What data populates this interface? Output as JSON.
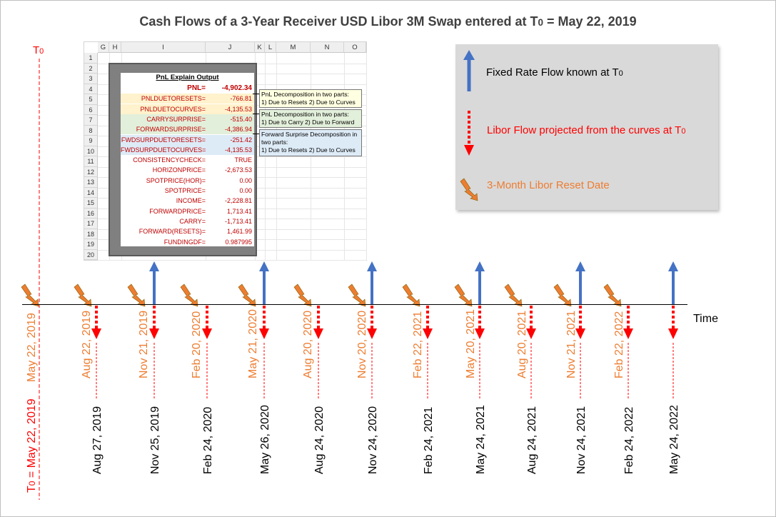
{
  "title": {
    "main": "Cash Flows of a 3-Year Receiver USD Libor 3M Swap entered at T",
    "sub": "0",
    "date": " = May 22, 2019"
  },
  "t0_marker": {
    "base": "T",
    "sub": "0"
  },
  "spreadsheet": {
    "columns": [
      "G",
      "H",
      "I",
      "J",
      "K",
      "L",
      "M",
      "N",
      "O"
    ],
    "rows": [
      "1",
      "2",
      "3",
      "4",
      "5",
      "6",
      "7",
      "8",
      "9",
      "10",
      "11",
      "12",
      "13",
      "14",
      "15",
      "16",
      "17",
      "18",
      "19",
      "20"
    ],
    "header": "PnL Explain Output",
    "entries": [
      {
        "label": "PNL=",
        "value": "-4,902.34"
      },
      {
        "label": "PNLDUETORESETS=",
        "value": "-766.81"
      },
      {
        "label": "PNLDUETOCURVES=",
        "value": "-4,135.53"
      },
      {
        "label": "CARRYSURPRISE=",
        "value": "-515.40"
      },
      {
        "label": "FORWARDSURPRISE=",
        "value": "-4,386.94"
      },
      {
        "label": "FWDSURPDUETORESETS=",
        "value": "-251.42"
      },
      {
        "label": "FWDSURPDUETOCURVES=",
        "value": "-4,135.53"
      },
      {
        "label": "CONSISTENCYCHECK=",
        "value": "TRUE"
      },
      {
        "label": "HORIZONPRICE=",
        "value": "-2,673.53"
      },
      {
        "label": "SPOTPRICE(HOR)=",
        "value": "0.00"
      },
      {
        "label": "SPOTPRICE=",
        "value": "0.00"
      },
      {
        "label": "INCOME=",
        "value": "-2,228.81"
      },
      {
        "label": "FORWARDPRICE=",
        "value": "1,713.41"
      },
      {
        "label": "CARRY=",
        "value": "-1,713.41"
      },
      {
        "label": "FORWARD(RESETS)=",
        "value": "1,461.99"
      },
      {
        "label": "FUNDINGDF=",
        "value": "0.987995"
      }
    ],
    "comments": [
      {
        "line1": "PnL Decomposition in two parts:",
        "line2": "1) Due to Resets 2) Due to Curves",
        "line3": ""
      },
      {
        "line1": "PnL Decomposition in two parts:",
        "line2": "1) Due to Carry 2) Due to Forward",
        "line3": ""
      },
      {
        "line1": "Forward Surprise Decomposition in",
        "line2": "two parts:",
        "line3": "1) Due to Resets 2) Due to Curves"
      }
    ],
    "colors": {
      "yellow_band": "#fff2cc",
      "green_band": "#e2efda",
      "blue_band": "#ddebf7",
      "text": "#c00000"
    }
  },
  "legend": {
    "fixed": {
      "text": "Fixed Rate Flow known at T",
      "sub": "0",
      "color": "#000000",
      "icon": "blue-up-arrow-icon"
    },
    "libor": {
      "text": "Libor Flow projected from the curves at T",
      "sub": "0",
      "color": "#ff0000",
      "icon": "red-dashed-down-arrow-icon"
    },
    "reset": {
      "text": "3-Month Libor Reset Date",
      "color": "#ed7d31",
      "icon": "lightning-bolt-icon"
    }
  },
  "timeline": {
    "time_label": "Time",
    "t0_date": "May 22, 2019",
    "t0_pay_label": {
      "base": "T",
      "sub": "0",
      "rest": " = May 22, 2019"
    },
    "reset_dates": [
      "Aug 22, 2019",
      "Nov 21, 2019",
      "Feb 20, 2020",
      "May 21, 2020",
      "Aug 20, 2020",
      "Nov 20, 2020",
      "Feb 22, 2021",
      "May 20, 2021",
      "Aug 20, 2021",
      "Nov 21, 2021",
      "Feb 22, 2022"
    ],
    "payment_dates": [
      "Aug 27, 2019",
      "Nov 25, 2019",
      "Feb 24, 2020",
      "May 26, 2020",
      "Aug 24, 2020",
      "Nov 24, 2020",
      "Feb 24, 2021",
      "May 24, 2021",
      "Aug 24, 2021",
      "Nov 24, 2021",
      "Feb 24, 2022",
      "May 24, 2022"
    ],
    "fixed_flow_payment_indices": [
      1,
      3,
      5,
      7,
      9,
      11
    ],
    "colors": {
      "fixed_arrow": "#4472c4",
      "libor_arrow": "#ff0000",
      "reset_text": "#ed7d31",
      "bolt": "#ed7d31"
    }
  }
}
